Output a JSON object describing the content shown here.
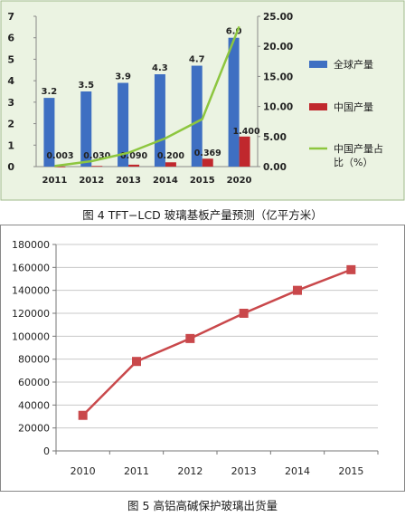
{
  "chart_data": [
    {
      "type": "bar",
      "caption": "图 4  TFT−LCD 玻璃基板产量预测（亿平方米）",
      "categories": [
        "2011",
        "2012",
        "2013",
        "2014",
        "2015",
        "2020"
      ],
      "series": [
        {
          "name": "全球产量",
          "axis": "left",
          "color": "#3e6fc2",
          "values": [
            3.2,
            3.5,
            3.9,
            4.3,
            4.7,
            6.0
          ],
          "labels": [
            "3.2",
            "3.5",
            "3.9",
            "4.3",
            "4.7",
            "6.0"
          ]
        },
        {
          "name": "中国产量",
          "axis": "left",
          "color": "#c0282d",
          "values": [
            0.003,
            0.03,
            0.09,
            0.2,
            0.369,
            1.4
          ],
          "labels": [
            "0.003",
            "0.030",
            "0.090",
            "0.200",
            "0.369",
            "1.400"
          ]
        },
        {
          "name": "中国产量占比（%）",
          "type": "line",
          "axis": "right",
          "color": "#8dc63f",
          "values": [
            0.1,
            0.9,
            2.3,
            4.7,
            7.9,
            23.3
          ]
        }
      ],
      "ylim_left": [
        0,
        7
      ],
      "yticks_left": [
        "0",
        "1",
        "2",
        "3",
        "4",
        "5",
        "6",
        "7"
      ],
      "ylim_right": [
        0,
        25
      ],
      "yticks_right": [
        "0.00",
        "5.00",
        "10.00",
        "15.00",
        "20.00",
        "25.00"
      ],
      "legend_position": "right"
    },
    {
      "type": "line",
      "caption": "图 5  高铝高碱保护玻璃出货量",
      "x": [
        "2010",
        "2011",
        "2012",
        "2013",
        "2014",
        "2015"
      ],
      "series": [
        {
          "name": "",
          "color": "#c9484b",
          "values": [
            31000,
            78000,
            98000,
            120000,
            140000,
            158000
          ]
        }
      ],
      "ylim": [
        0,
        180000
      ],
      "yticks": [
        "0",
        "20000",
        "40000",
        "60000",
        "80000",
        "100000",
        "120000",
        "140000",
        "160000",
        "180000"
      ],
      "grid": true
    }
  ]
}
